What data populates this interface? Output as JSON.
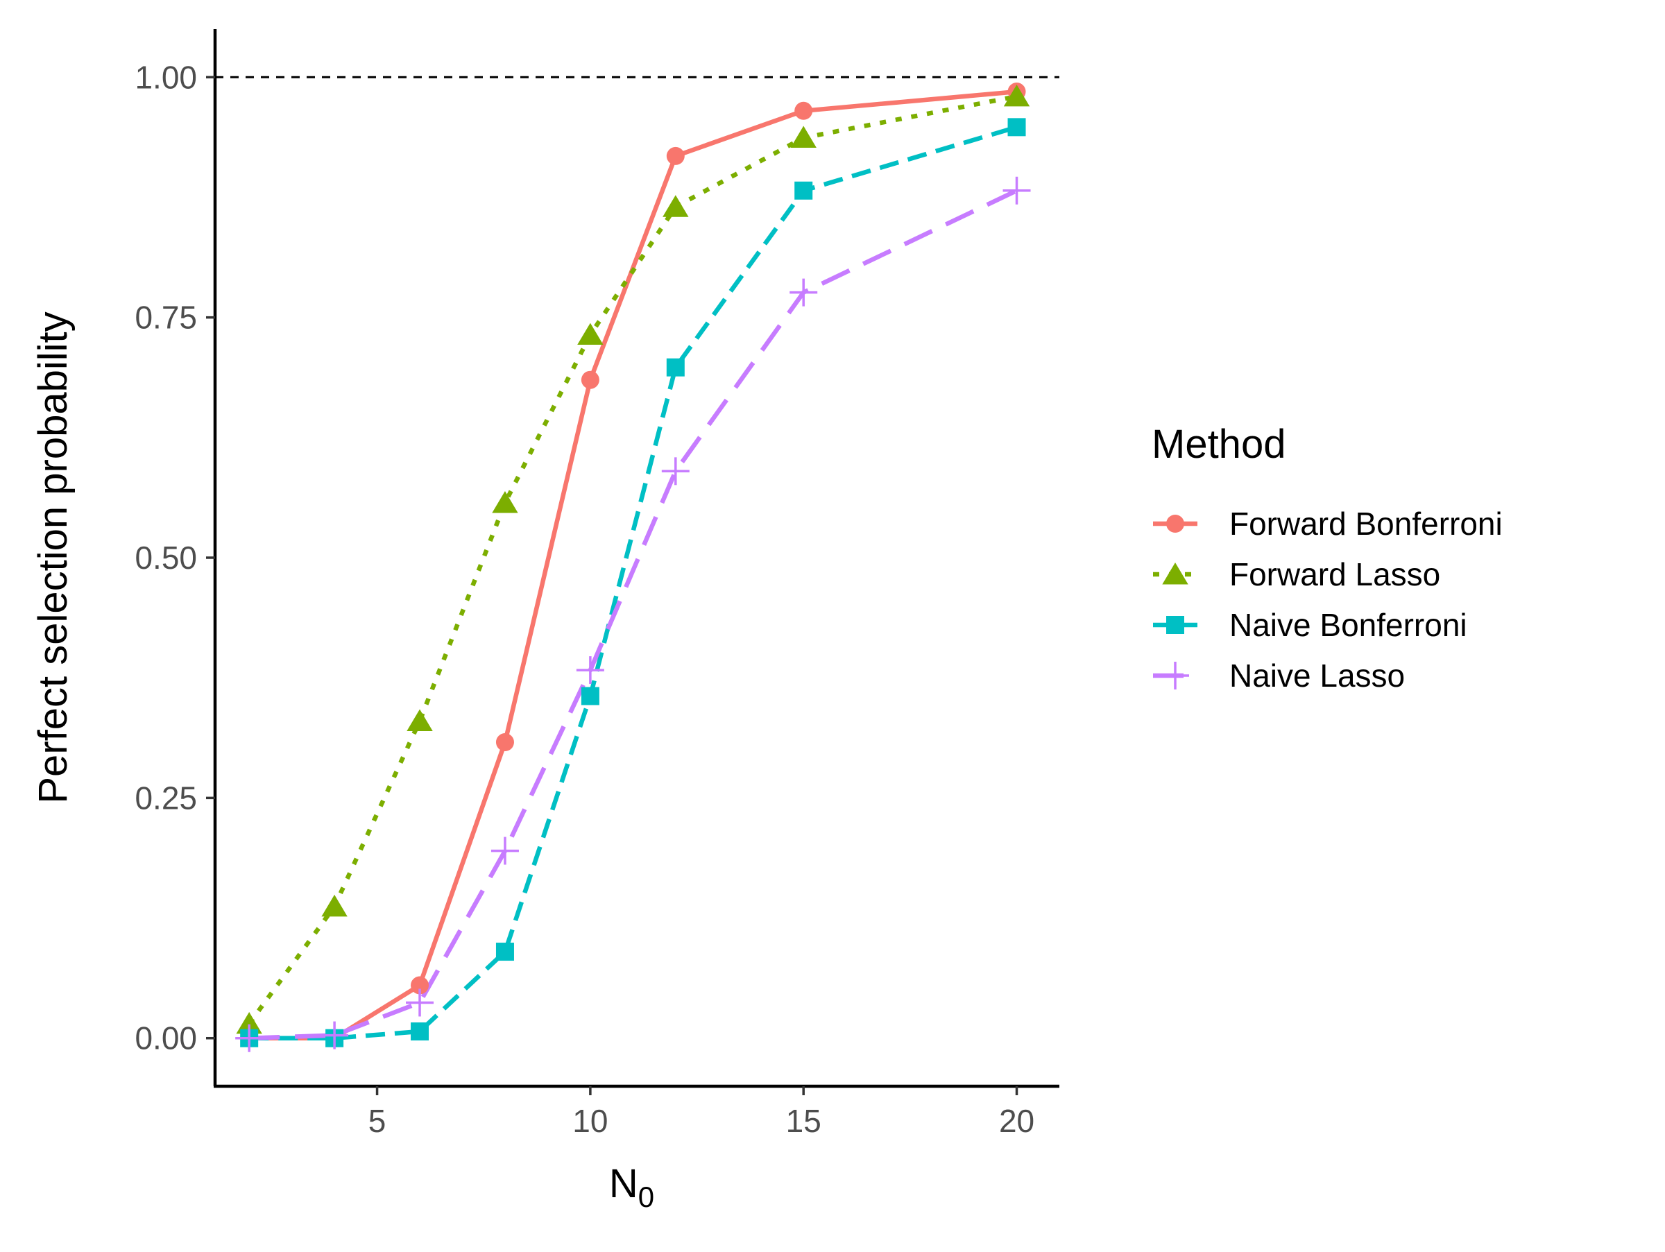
{
  "chart_data": {
    "type": "line",
    "title": "",
    "xlabel": "N",
    "xlabel_subscript": "0",
    "ylabel": "Perfect selection probability",
    "x": [
      2,
      4,
      6,
      8,
      10,
      12,
      15,
      20
    ],
    "xlim": [
      1.2,
      21.0
    ],
    "ylim": [
      -0.05,
      1.05
    ],
    "xticks": [
      5,
      10,
      15,
      20
    ],
    "xtick_labels": [
      "5",
      "10",
      "15",
      "20"
    ],
    "yticks": [
      0.0,
      0.25,
      0.5,
      0.75,
      1.0
    ],
    "ytick_labels": [
      "0.00",
      "0.25",
      "0.50",
      "0.75",
      "1.00"
    ],
    "reference_line": {
      "y": 1.0,
      "style": "dashed",
      "color": "#000000"
    },
    "grid": false,
    "legend": {
      "title": "Method",
      "position": "right"
    },
    "series": [
      {
        "name": "Forward Bonferroni",
        "color": "#F8766D",
        "marker": "circle",
        "line": "solid",
        "values": [
          0.0,
          0.0,
          0.055,
          0.308,
          0.685,
          0.918,
          0.965,
          0.985
        ]
      },
      {
        "name": "Forward Lasso",
        "color": "#7CAE00",
        "marker": "triangle",
        "line": "dotted",
        "values": [
          0.015,
          0.137,
          0.33,
          0.557,
          0.732,
          0.865,
          0.937,
          0.98
        ]
      },
      {
        "name": "Naive Bonferroni",
        "color": "#00BFC4",
        "marker": "square",
        "line": "dashed",
        "values": [
          0.0,
          0.0,
          0.007,
          0.09,
          0.356,
          0.698,
          0.882,
          0.948
        ]
      },
      {
        "name": "Naive Lasso",
        "color": "#C77CFF",
        "marker": "plus",
        "line": "longdash",
        "values": [
          0.0,
          0.003,
          0.037,
          0.195,
          0.383,
          0.59,
          0.776,
          0.882
        ]
      }
    ]
  }
}
